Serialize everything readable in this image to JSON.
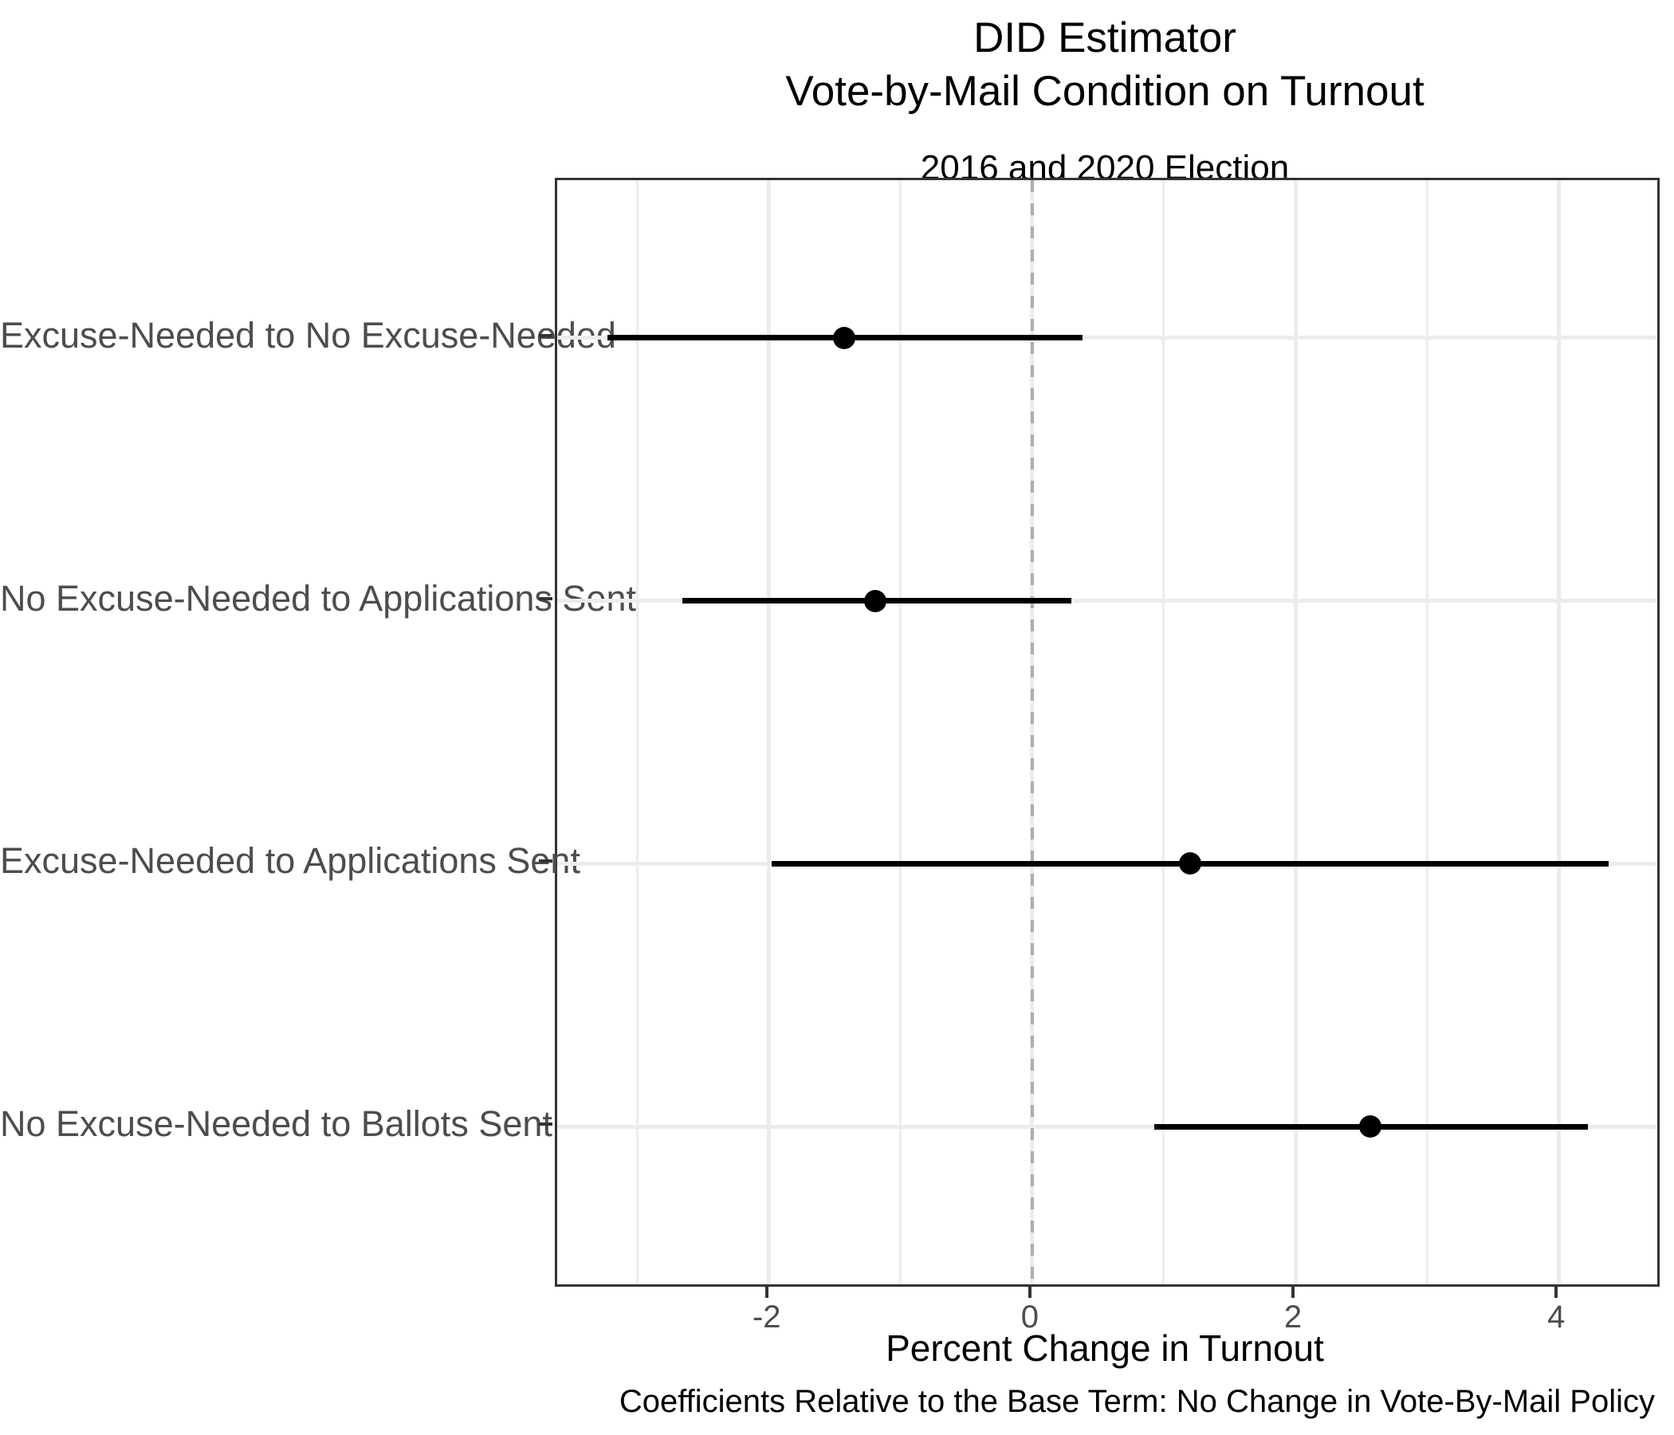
{
  "title": {
    "line1": "DID Estimator",
    "line2": "Vote-by-Mail Condition on Turnout",
    "subtitle": "2016 and 2020 Election"
  },
  "caption": "Coefficients Relative to the Base Term: No Change in Vote-By-Mail Policy",
  "chart_data": {
    "type": "scatter",
    "subtype": "horizontal-coefficient-dot-whisker",
    "title_line1": "DID Estimator",
    "title_line2": "Vote-by-Mail Condition on Turnout",
    "subtitle": "2016 and 2020 Election",
    "xlabel": "Percent Change in Turnout",
    "caption": "Coefficients Relative to the Base Term: No Change in Vote-By-Mail Policy",
    "categories": [
      "Excuse-Needed to No Excuse-Needed",
      "No Excuse-Needed to Applications Sent",
      "Excuse-Needed to Applications Sent",
      "No Excuse-Needed to Ballots Sent"
    ],
    "points": [
      {
        "label": "Excuse-Needed to No Excuse-Needed",
        "estimate": -1.43,
        "ci_low": -3.23,
        "ci_high": 0.38
      },
      {
        "label": "No Excuse-Needed to Applications Sent",
        "estimate": -1.19,
        "ci_low": -2.66,
        "ci_high": 0.3
      },
      {
        "label": "Excuse-Needed to Applications Sent",
        "estimate": 1.2,
        "ci_low": -1.98,
        "ci_high": 4.38
      },
      {
        "label": "No Excuse-Needed to Ballots Sent",
        "estimate": 2.57,
        "ci_low": 0.93,
        "ci_high": 4.22
      }
    ],
    "xlim": [
      -3.61,
      4.75
    ],
    "x_ticks": [
      -2,
      0,
      2,
      4
    ],
    "x_minor_gridlines": [
      -3,
      -1,
      1,
      3
    ],
    "reference_line_x": 0,
    "reference_line_style": "dashed",
    "grid": true,
    "legend": "none",
    "colors": {
      "point": "#000000",
      "interval": "#000000",
      "gridline": "#ececec",
      "reference_line": "#adadad",
      "axis_text": "#4d4d4d",
      "panel_border": "#333333"
    }
  }
}
